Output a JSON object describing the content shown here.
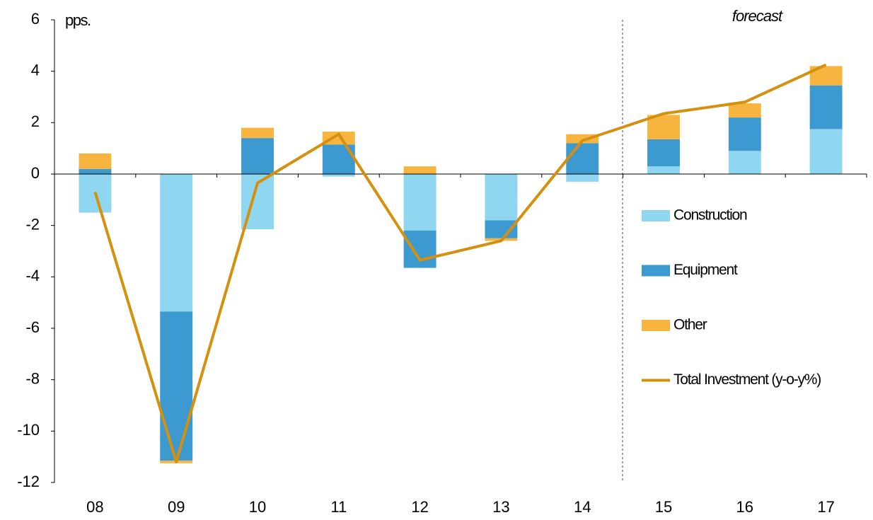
{
  "chart_data": {
    "type": "bar",
    "stacked": true,
    "y_label": "pps.",
    "annotation": "forecast",
    "categories": [
      "08",
      "09",
      "10",
      "11",
      "12",
      "13",
      "14",
      "15",
      "16",
      "17"
    ],
    "series": [
      {
        "name": "Construction",
        "color": "#8fd6f0",
        "values": [
          -1.5,
          -5.35,
          -2.15,
          -0.1,
          -2.2,
          -1.8,
          -0.3,
          0.3,
          0.9,
          1.75
        ]
      },
      {
        "name": "Equipment",
        "color": "#3d9ad1",
        "values": [
          0.2,
          -5.8,
          1.4,
          1.15,
          -1.45,
          -0.7,
          1.2,
          1.05,
          1.3,
          1.7
        ]
      },
      {
        "name": "Other",
        "color": "#f7b53f",
        "values": [
          0.6,
          -0.1,
          0.4,
          0.5,
          0.3,
          -0.1,
          0.35,
          0.95,
          0.55,
          0.75
        ]
      },
      {
        "name": "Total Investment (y-o-y%)",
        "color": "#d4900e",
        "kind": "line",
        "values": [
          -0.7,
          -11.2,
          -0.35,
          1.55,
          -3.35,
          -2.6,
          1.3,
          2.35,
          2.8,
          4.25
        ]
      }
    ],
    "ylim": [
      -12,
      6
    ],
    "yticks": [
      -12,
      -10,
      -8,
      -6,
      -4,
      -2,
      0,
      2,
      4,
      6
    ]
  }
}
